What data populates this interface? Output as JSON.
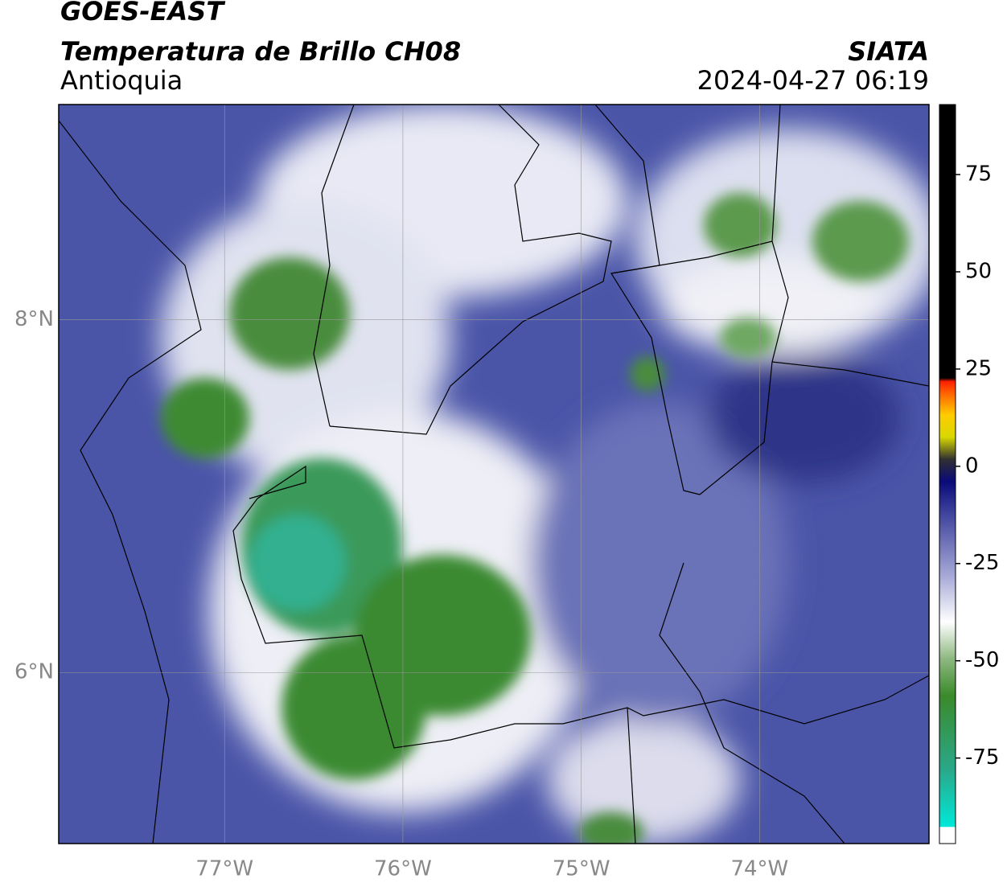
{
  "header": {
    "title": "GOES-EAST",
    "subtitle": "Temperatura de Brillo CH08",
    "region": "Antioquia",
    "source": "SIATA",
    "datetime": "2024-04-27 06:19"
  },
  "map": {
    "xlim": [
      -77.93,
      -73.05
    ],
    "ylim": [
      5.03,
      9.22
    ],
    "xticks": [
      {
        "value": -77,
        "label": "77°W"
      },
      {
        "value": -76,
        "label": "76°W"
      },
      {
        "value": -75,
        "label": "75°W"
      },
      {
        "value": -74,
        "label": "74°W"
      }
    ],
    "yticks": [
      {
        "value": 8,
        "label": "8°N"
      },
      {
        "value": 6,
        "label": "6°N"
      }
    ]
  },
  "colorbar": {
    "limits": [
      -97,
      93
    ],
    "ticks": [
      75,
      50,
      25,
      0,
      -25,
      -50,
      -75
    ]
  }
}
